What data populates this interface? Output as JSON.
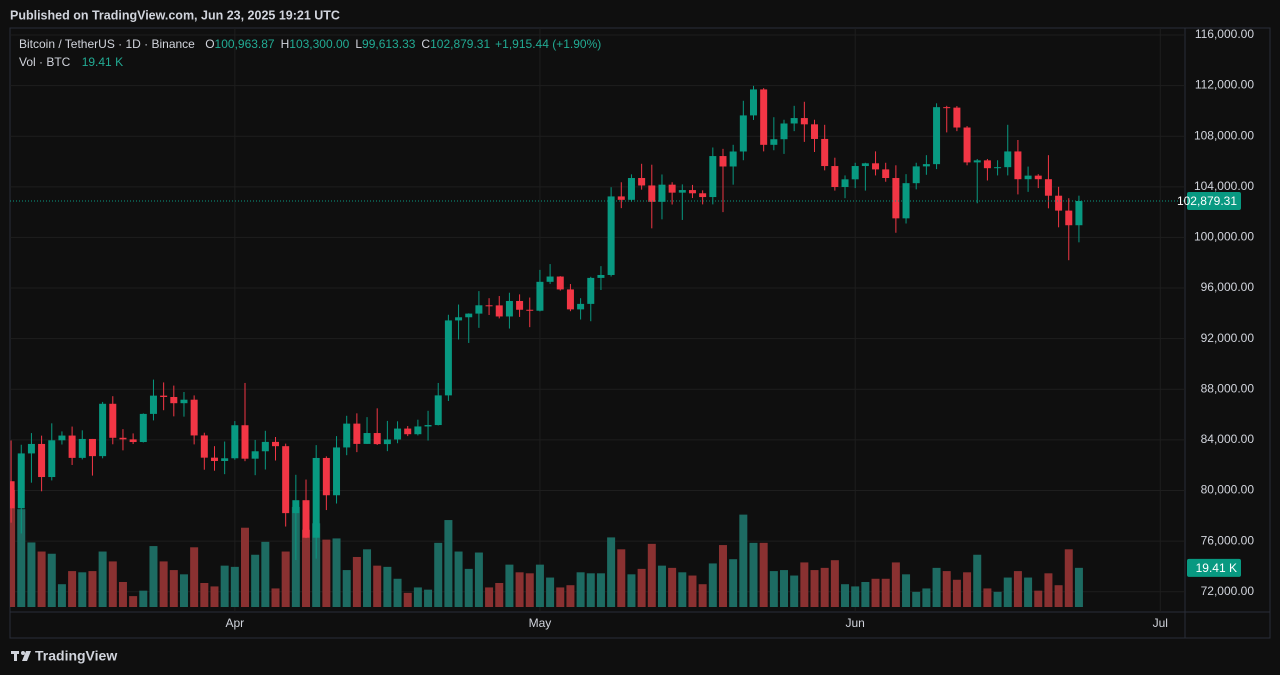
{
  "header": {
    "published": "Published on TradingView.com, Jun 23, 2025 19:21 UTC"
  },
  "footer": {
    "brand": "TradingView"
  },
  "chart_data": {
    "type": "candlestick",
    "categories": [
      null,
      null,
      null,
      null,
      null,
      null,
      null,
      null,
      null,
      null,
      null,
      null,
      null,
      null,
      null,
      null,
      null,
      null,
      null,
      null,
      null,
      null,
      "Apr",
      null,
      null,
      null,
      null,
      null,
      null,
      null,
      null,
      null,
      null,
      null,
      null,
      null,
      null,
      null,
      null,
      null,
      null,
      null,
      null,
      null,
      null,
      null,
      null,
      null,
      null,
      null,
      null,
      null,
      "May",
      null,
      null,
      null,
      null,
      null,
      null,
      null,
      null,
      null,
      null,
      null,
      null,
      null,
      null,
      null,
      null,
      null,
      null,
      null,
      null,
      null,
      null,
      null,
      null,
      null,
      null,
      null,
      null,
      null,
      null,
      "Jun",
      null,
      null,
      null,
      null,
      null,
      null,
      null,
      null,
      null,
      null,
      null,
      null,
      null,
      null,
      null,
      null,
      null,
      null,
      null,
      null,
      null,
      null,
      null,
      null,
      null,
      null,
      null,
      null,
      null,
      "Jul",
      null,
      null
    ],
    "series": [
      {
        "name": "Bitcoin / TetherUS · 1D · Binance",
        "up_color": "#089981",
        "down_color": "#f23645",
        "open": [
          80734,
          78595,
          82932,
          83680,
          81066,
          83969,
          84343,
          82579,
          84075,
          82718,
          86854,
          84167,
          84043,
          83832,
          86054,
          87498,
          87391,
          86900,
          87177,
          84353,
          82597,
          82334,
          82548,
          85159,
          82516,
          83102,
          83843,
          83504,
          78214,
          79235,
          76271,
          82573,
          79626,
          83404,
          85287,
          83684,
          84542,
          83669,
          84033,
          84895,
          84450,
          85063,
          85174,
          87518,
          93442,
          93691,
          93980,
          94638,
          94630,
          93754,
          94978,
          94284,
          94207,
          96492,
          96910,
          95892,
          94315,
          94748,
          96802,
          97032,
          103241,
          102971,
          104696,
          104106,
          102812,
          104169,
          103539,
          103744,
          103489,
          103191,
          106430,
          105606,
          106791,
          109643,
          111696,
          107318,
          107761,
          109004,
          109434,
          108938,
          107782,
          105641,
          103985,
          104591,
          105642,
          105858,
          105376,
          104696,
          101508,
          104288,
          105615,
          105793,
          110295,
          110258,
          108686,
          105929,
          106091,
          105472,
          105552,
          106796,
          104601,
          104883,
          104601,
          103297,
          102120,
          100963.87,
          null,
          null,
          null,
          null,
          null,
          null,
          null,
          null,
          null,
          null
        ],
        "high": [
          83955,
          83617,
          84539,
          84337,
          85310,
          84672,
          85054,
          84757,
          84075,
          87000,
          87454,
          84850,
          84513,
          86094,
          88765,
          88542,
          88292,
          87786,
          87515,
          84567,
          83505,
          83870,
          85487,
          88500,
          83998,
          84720,
          84229,
          83704,
          81243,
          80867,
          83588,
          82700,
          84300,
          85905,
          86100,
          85800,
          86496,
          85500,
          85470,
          85096,
          85597,
          86300,
          88500,
          93888,
          94696,
          94005,
          95758,
          95199,
          95369,
          95630,
          95500,
          95249,
          97437,
          97895,
          96943,
          96318,
          95199,
          96889,
          97732,
          103969,
          104361,
          104984,
          105819,
          105747,
          104976,
          104362,
          104192,
          104150,
          103722,
          107108,
          107000,
          107320,
          110797,
          111980,
          111800,
          109500,
          109300,
          110400,
          110720,
          109300,
          108900,
          106300,
          104900,
          105900,
          105900,
          106800,
          105900,
          105700,
          105000,
          105900,
          106500,
          110600,
          110400,
          110380,
          108800,
          106200,
          106200,
          106100,
          108900,
          107700,
          105600,
          105000,
          106500,
          104000,
          103100,
          103300,
          null,
          null,
          null,
          null,
          null,
          null,
          null,
          null,
          null,
          null
        ],
        "low": [
          77459,
          76606,
          80620,
          79939,
          80797,
          83637,
          82019,
          82457,
          81179,
          82547,
          83655,
          83175,
          83674,
          83794,
          85541,
          86346,
          85862,
          85837,
          83646,
          81644,
          81565,
          81293,
          82432,
          82320,
          81211,
          81659,
          82371,
          77153,
          74508,
          76239,
          74620,
          78456,
          78972,
          82792,
          83034,
          83678,
          83600,
          83112,
          83736,
          84302,
          84353,
          83949,
          85144,
          87076,
          91935,
          91660,
          92855,
          93870,
          93602,
          92800,
          93720,
          92910,
          94153,
          96325,
          95800,
          94173,
          93514,
          93377,
          95846,
          96913,
          102315,
          102818,
          103777,
          100718,
          101429,
          102602,
          101383,
          103111,
          102612,
          102612,
          102000,
          104170,
          106100,
          109285,
          106800,
          106890,
          106600,
          108400,
          107550,
          106750,
          105300,
          103700,
          103100,
          103900,
          103700,
          104900,
          104400,
          100370,
          101100,
          103800,
          104950,
          105400,
          108300,
          108400,
          105700,
          102700,
          104500,
          104900,
          104900,
          103400,
          103600,
          103900,
          102300,
          100800,
          98200,
          99613.33,
          null,
          null,
          null,
          null,
          null,
          null,
          null,
          null,
          null,
          null
        ],
        "close": [
          78595,
          82932,
          83680,
          81066,
          83969,
          84343,
          82579,
          84075,
          82718,
          86854,
          84167,
          84043,
          83832,
          86054,
          87498,
          87391,
          86900,
          87177,
          84353,
          82597,
          82334,
          82548,
          85159,
          82516,
          83102,
          83843,
          83504,
          78214,
          79235,
          76271,
          82573,
          79626,
          83404,
          85287,
          83684,
          84542,
          83669,
          84033,
          84895,
          84450,
          85063,
          85174,
          87518,
          93442,
          93691,
          93980,
          94638,
          94630,
          93754,
          94978,
          94284,
          94207,
          96492,
          96910,
          95892,
          94315,
          94748,
          96802,
          97032,
          103241,
          102971,
          104696,
          104106,
          102812,
          104169,
          103539,
          103744,
          103489,
          103191,
          106430,
          105606,
          106791,
          109643,
          111696,
          107318,
          107761,
          109004,
          109434,
          108938,
          107782,
          105641,
          103985,
          104591,
          105642,
          105858,
          105376,
          104696,
          101508,
          104288,
          105615,
          105793,
          110295,
          110258,
          108686,
          105929,
          106091,
          105472,
          105552,
          106796,
          104601,
          104883,
          104601,
          103297,
          102120,
          100963.87,
          102879.31,
          null,
          null,
          null,
          null,
          null,
          null,
          null,
          null,
          null,
          null
        ]
      }
    ],
    "legend": [
      {
        "key": "O",
        "label": "100,963.87"
      },
      {
        "key": "H",
        "label": "103,300.00"
      },
      {
        "key": "L",
        "label": "99,613.33"
      },
      {
        "key": "C",
        "label": "102,879.31"
      }
    ],
    "change": "+1,915.44 (+1.90%)",
    "last_price": {
      "value": 102879.31,
      "label": "102,879.31"
    },
    "volume": {
      "name": "Vol · BTC",
      "up_color": "#1d6b62",
      "down_color": "#8a3131",
      "values": [
        58,
        48.5,
        32,
        27.5,
        26.4,
        11.3,
        17.8,
        17.2,
        17.8,
        27.5,
        22.6,
        12.4,
        5.4,
        8.1,
        30.2,
        22.6,
        18.3,
        16.2,
        29.6,
        11.9,
        10.2,
        20.5,
        19.9,
        39.3,
        25.9,
        32.3,
        9.2,
        27.5,
        49.6,
        38.3,
        41.5,
        33.4,
        34,
        18.3,
        24.8,
        28.6,
        20.5,
        19.9,
        14,
        7,
        9.7,
        8.6,
        31.8,
        43.1,
        27.5,
        18.9,
        27,
        9.7,
        11.9,
        21,
        17.2,
        16.7,
        21,
        14.6,
        9.7,
        10.8,
        17.2,
        16.7,
        16.7,
        34.5,
        28.6,
        16.2,
        18.9,
        31.3,
        20.5,
        19.4,
        17.2,
        15.6,
        11.3,
        21.6,
        30.7,
        23.7,
        45.8,
        31.8,
        31.8,
        17.8,
        18.3,
        15.6,
        22.1,
        18.3,
        19.4,
        23.2,
        11.3,
        10.2,
        12.4,
        14,
        14,
        22.1,
        16.2,
        7.5,
        9.2,
        19.4,
        17.8,
        13.5,
        17.2,
        25.9,
        9.2,
        7.5,
        14.6,
        17.8,
        14.6,
        8.1,
        16.7,
        10.8,
        28.6,
        19.41,
        null,
        null,
        null,
        null,
        null,
        null,
        null,
        null,
        null,
        null
      ],
      "last_label": "19.41 K"
    },
    "ylim": [
      70400,
      116550
    ],
    "yticks": [
      {
        "value": 72000,
        "label": "72,000.00"
      },
      {
        "value": 76000,
        "label": "76,000.00"
      },
      {
        "value": 80000,
        "label": "80,000.00"
      },
      {
        "value": 84000,
        "label": "84,000.00"
      },
      {
        "value": 88000,
        "label": "88,000.00"
      },
      {
        "value": 92000,
        "label": "92,000.00"
      },
      {
        "value": 96000,
        "label": "96,000.00"
      },
      {
        "value": 100000,
        "label": "100,000.00"
      },
      {
        "value": 104000,
        "label": "104,000.00"
      },
      {
        "value": 108000,
        "label": "108,000.00"
      },
      {
        "value": 112000,
        "label": "112,000.00"
      },
      {
        "value": 116000,
        "label": "116,000.00"
      }
    ],
    "grid": true
  }
}
